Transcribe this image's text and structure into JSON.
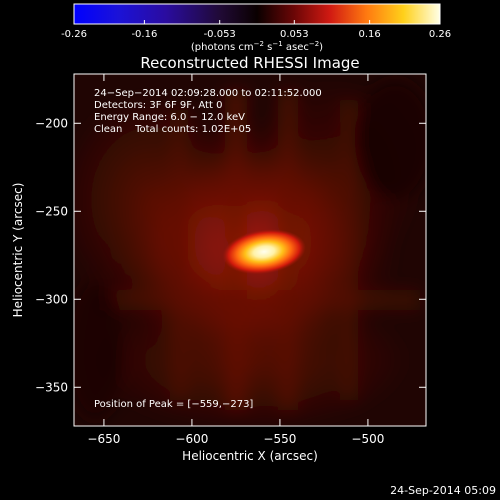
{
  "colorbar": {
    "ticks": [
      "-0.26",
      "-0.16",
      "-0.053",
      "0.053",
      "0.16",
      "0.26"
    ],
    "tick_values": [
      -0.26,
      -0.16,
      -0.053,
      0.053,
      0.16,
      0.26
    ],
    "range": [
      -0.26,
      0.26
    ],
    "unit_parts": {
      "open": "(photons cm",
      "sup1": "−2",
      "mid1": " s",
      "sup2": "−1",
      "mid2": " asec",
      "sup3": "−2",
      "close": ")"
    }
  },
  "title": "Reconstructed RHESSI Image",
  "info": {
    "line1": "24−Sep−2014 02:09:28.000 to 02:11:52.000",
    "line2": "Detectors: 3F 6F 9F, Att 0",
    "line3": "Energy Range: 6.0 − 12.0 keV",
    "line4": "Clean    Total counts: 1.02E+05"
  },
  "peak_label": "Position of Peak = [−559,−273]",
  "peak_position": [
    -559,
    -273
  ],
  "x_axis": {
    "label": "Heliocentric X (arcsec)",
    "ticks": [
      "−650",
      "−600",
      "−550",
      "−500"
    ],
    "tick_values": [
      -650,
      -600,
      -550,
      -500
    ],
    "range": [
      -667,
      -467
    ]
  },
  "y_axis": {
    "label": "Heliocentric Y (arcsec)",
    "ticks": [
      "−200",
      "−250",
      "−300",
      "−350"
    ],
    "tick_values": [
      -200,
      -250,
      -300,
      -350
    ],
    "range": [
      -372,
      -172
    ]
  },
  "timestamp": "24-Sep-2014 05:09",
  "colors": {
    "background": "#000000",
    "text": "#ffffff"
  }
}
